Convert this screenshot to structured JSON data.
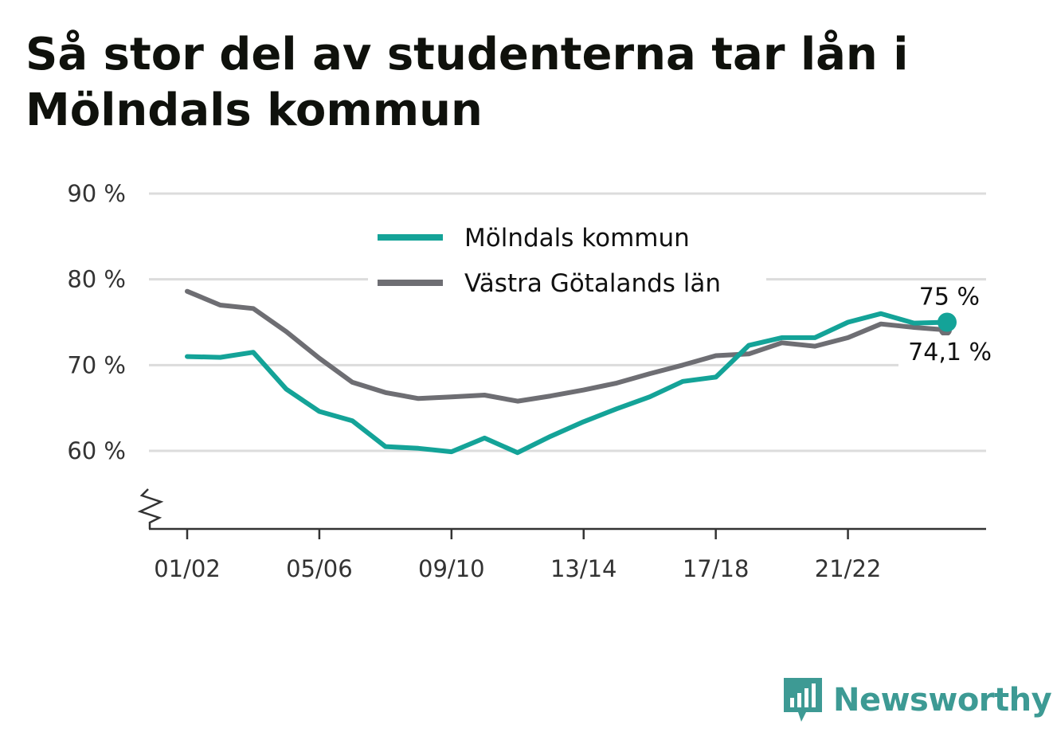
{
  "title": "Så stor del av studenterna tar lån i Mölndals kommun",
  "brand": {
    "name": "Newsworthy",
    "icon": "newsworthy-logo-icon",
    "color": "#3d9a94"
  },
  "chart_data": {
    "type": "line",
    "title": "Så stor del av studenterna tar lån i Mölndals kommun",
    "xlabel": "",
    "ylabel": "",
    "ylim": [
      50,
      90
    ],
    "y_axis_break": true,
    "grid": true,
    "legend_position": "top-center",
    "y_ticks": [
      {
        "value": 60,
        "label": "60 %"
      },
      {
        "value": 70,
        "label": "70 %"
      },
      {
        "value": 80,
        "label": "80 %"
      },
      {
        "value": 90,
        "label": "90 %"
      }
    ],
    "x": [
      "01/02",
      "02/03",
      "03/04",
      "04/05",
      "05/06",
      "06/07",
      "07/08",
      "08/09",
      "09/10",
      "10/11",
      "11/12",
      "12/13",
      "13/14",
      "14/15",
      "15/16",
      "16/17",
      "17/18",
      "18/19",
      "19/20",
      "20/21",
      "21/22",
      "22/23",
      "23/24",
      "24/25"
    ],
    "x_tick_labels": [
      "01/02",
      "05/06",
      "09/10",
      "13/14",
      "17/18",
      "21/22"
    ],
    "series": [
      {
        "name": "Mölndals kommun",
        "color": "#14a398",
        "values": [
          71.0,
          70.9,
          71.5,
          67.2,
          64.6,
          63.5,
          60.5,
          60.3,
          59.9,
          61.5,
          59.8,
          61.7,
          63.4,
          64.9,
          66.3,
          68.1,
          68.6,
          72.3,
          73.2,
          73.2,
          75.0,
          76.0,
          74.9,
          75.0
        ],
        "end_label": "75 %"
      },
      {
        "name": "Västra Götalands län",
        "color": "#6e6e73",
        "values": [
          78.6,
          77.0,
          76.6,
          73.9,
          70.8,
          68.0,
          66.8,
          66.1,
          66.3,
          66.5,
          65.8,
          66.4,
          67.1,
          67.9,
          69.0,
          70.0,
          71.1,
          71.3,
          72.6,
          72.2,
          73.2,
          74.8,
          74.4,
          74.1
        ],
        "end_label": "74,1 %"
      }
    ]
  }
}
